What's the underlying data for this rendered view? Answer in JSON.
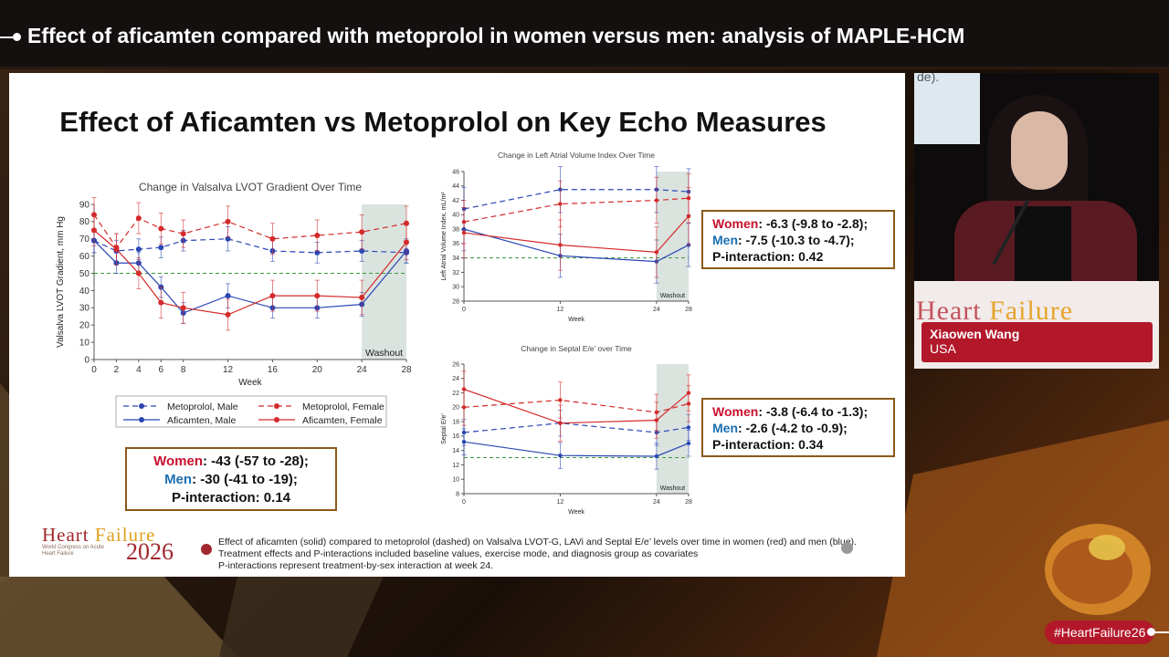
{
  "header": {
    "title": "Effect of aficamten compared with metoprolol in women versus men: analysis of MAPLE-HCM"
  },
  "slide": {
    "title": "Effect of Aficamten vs Metoprolol on Key Echo Measures",
    "footnote": [
      "Effect of aficamten (solid) compared to metoprolol (dashed) on Valsalva LVOT-G, LAVi and Septal E/e’ levels over time in women (red) and men (blue).",
      "Treatment effects and P-interactions included baseline values, exercise mode, and diagnosis group as covariates",
      "P-interactions represent treatment-by-sex interaction at week 24."
    ],
    "logo": {
      "line1a": "Heart ",
      "line1b": "Failure",
      "line2": "World Congress on Acute Heart Failure",
      "year": "2026"
    },
    "stats": [
      {
        "women": "Women",
        "women_val": ": -43 (-57 to -28);",
        "men": "Men",
        "men_val": ": -30 (-41 to -19);",
        "p": "P-interaction: 0.14"
      },
      {
        "women": "Women",
        "women_val": ": -6.3 (-9.8 to -2.8);",
        "men": "Men",
        "men_val": ": -7.5 (-10.3 to -4.7);",
        "p": "P-interaction: 0.42"
      },
      {
        "women": "Women",
        "women_val": ": -3.8 (-6.4 to -1.3);",
        "men": "Men",
        "men_val": ": -2.6 (-4.2 to -0.9);",
        "p": "P-interaction: 0.34"
      }
    ]
  },
  "colors": {
    "male": "#2a46b4",
    "female": "#d42a2a",
    "ref": "#3a9a3a",
    "washout": "#dbe3df",
    "brand_red": "#b3182a"
  },
  "chart_data": [
    {
      "type": "line",
      "title": "Change in Valsalva LVOT Gradient Over Time",
      "xlabel": "Week",
      "ylabel": "Valsalva LVOT Gradient, mm Hg",
      "xlim": [
        0,
        28
      ],
      "ylim": [
        0,
        90
      ],
      "xticks": [
        0,
        2,
        4,
        6,
        8,
        12,
        16,
        20,
        24,
        28
      ],
      "yticks": [
        0,
        10,
        20,
        30,
        40,
        50,
        60,
        70,
        80,
        90
      ],
      "reference_line": 50,
      "shaded_region": {
        "x": [
          24,
          28
        ],
        "label": "Washout"
      },
      "legend_position": "bottom",
      "series": [
        {
          "name": "Metoprolol, Male",
          "style": "dashed",
          "sex": "male",
          "x": [
            0,
            2,
            4,
            6,
            8,
            12,
            16,
            20,
            24,
            28
          ],
          "y": [
            69,
            63,
            64,
            65,
            69,
            70,
            63,
            62,
            63,
            62
          ],
          "err": [
            7,
            6,
            6,
            6,
            6,
            7,
            6,
            6,
            6,
            6
          ]
        },
        {
          "name": "Metoprolol, Female",
          "style": "dashed",
          "sex": "female",
          "x": [
            0,
            2,
            4,
            6,
            8,
            12,
            16,
            20,
            24,
            28
          ],
          "y": [
            84,
            65,
            82,
            76,
            73,
            80,
            70,
            72,
            74,
            79
          ],
          "err": [
            10,
            8,
            9,
            9,
            8,
            9,
            9,
            9,
            10,
            10
          ]
        },
        {
          "name": "Aficamten, Male",
          "style": "solid",
          "sex": "male",
          "x": [
            0,
            2,
            4,
            6,
            8,
            12,
            16,
            20,
            24,
            28
          ],
          "y": [
            69,
            56,
            56,
            42,
            27,
            37,
            30,
            30,
            32,
            63
          ],
          "err": [
            7,
            6,
            6,
            6,
            6,
            7,
            6,
            6,
            7,
            7
          ]
        },
        {
          "name": "Aficamten, Female",
          "style": "solid",
          "sex": "female",
          "x": [
            0,
            2,
            4,
            6,
            8,
            12,
            16,
            20,
            24,
            28
          ],
          "y": [
            75,
            64,
            50,
            33,
            30,
            26,
            37,
            37,
            36,
            68
          ],
          "err": [
            9,
            9,
            9,
            9,
            9,
            9,
            9,
            9,
            10,
            10
          ]
        }
      ]
    },
    {
      "type": "line",
      "title": "Change in Left Atrial Volume Index Over Time",
      "xlabel": "Week",
      "ylabel": "Left Atrial Volume Index, mL/m²",
      "xlim": [
        0,
        28
      ],
      "ylim": [
        28,
        46
      ],
      "xticks": [
        0,
        12,
        24,
        28
      ],
      "yticks": [
        28,
        30,
        32,
        34,
        36,
        38,
        40,
        42,
        44,
        46
      ],
      "reference_line": 34,
      "shaded_region": {
        "x": [
          24,
          28
        ],
        "label": "Washout"
      },
      "series": [
        {
          "name": "Metoprolol, Male",
          "style": "dashed",
          "sex": "male",
          "x": [
            0,
            12,
            24,
            28
          ],
          "y": [
            40.8,
            43.5,
            43.5,
            43.2
          ],
          "err": [
            3,
            3.2,
            3.2,
            3.2
          ]
        },
        {
          "name": "Metoprolol, Female",
          "style": "dashed",
          "sex": "female",
          "x": [
            0,
            12,
            24,
            28
          ],
          "y": [
            39,
            41.5,
            42,
            42.3
          ],
          "err": [
            3,
            3.2,
            3.2,
            3.4
          ]
        },
        {
          "name": "Aficamten, Male",
          "style": "solid",
          "sex": "male",
          "x": [
            0,
            12,
            24,
            28
          ],
          "y": [
            38,
            34.3,
            33.5,
            35.8
          ],
          "err": [
            3,
            3,
            3,
            3
          ]
        },
        {
          "name": "Aficamten, Female",
          "style": "solid",
          "sex": "female",
          "x": [
            0,
            12,
            24,
            28
          ],
          "y": [
            37.5,
            35.8,
            34.8,
            39.8
          ],
          "err": [
            3.5,
            3.5,
            3.5,
            4
          ]
        }
      ]
    },
    {
      "type": "line",
      "title": "Change in Septal E/e’ over Time",
      "xlabel": "Week",
      "ylabel": "Septal E/e’",
      "xlim": [
        0,
        28
      ],
      "ylim": [
        8,
        26
      ],
      "xticks": [
        0,
        12,
        24,
        28
      ],
      "yticks": [
        8,
        10,
        12,
        14,
        16,
        18,
        20,
        22,
        24,
        26
      ],
      "reference_line": 13,
      "shaded_region": {
        "x": [
          24,
          28
        ],
        "label": "Washout"
      },
      "series": [
        {
          "name": "Metoprolol, Male",
          "style": "dashed",
          "sex": "male",
          "x": [
            0,
            12,
            24,
            28
          ],
          "y": [
            16.5,
            17.8,
            16.5,
            17.2
          ],
          "err": [
            1.8,
            1.8,
            1.8,
            1.8
          ]
        },
        {
          "name": "Metoprolol, Female",
          "style": "dashed",
          "sex": "female",
          "x": [
            0,
            12,
            24,
            28
          ],
          "y": [
            20,
            21,
            19.3,
            20.5
          ],
          "err": [
            2.5,
            2.5,
            2.5,
            2.5
          ]
        },
        {
          "name": "Aficamten, Male",
          "style": "solid",
          "sex": "male",
          "x": [
            0,
            12,
            24,
            28
          ],
          "y": [
            15.2,
            13.3,
            13.2,
            15
          ],
          "err": [
            1.8,
            1.8,
            1.8,
            1.8
          ]
        },
        {
          "name": "Aficamten, Female",
          "style": "solid",
          "sex": "female",
          "x": [
            0,
            12,
            24,
            28
          ],
          "y": [
            22.5,
            17.8,
            18.2,
            22
          ],
          "err": [
            2.5,
            2.5,
            2.5,
            2.5
          ]
        }
      ]
    }
  ],
  "speaker": {
    "name": "Xiaowen Wang",
    "country": "USA",
    "screen_text": "de).",
    "banner_a": "Heart ",
    "banner_b": "Failure"
  },
  "hashtag": "#HeartFailure26"
}
